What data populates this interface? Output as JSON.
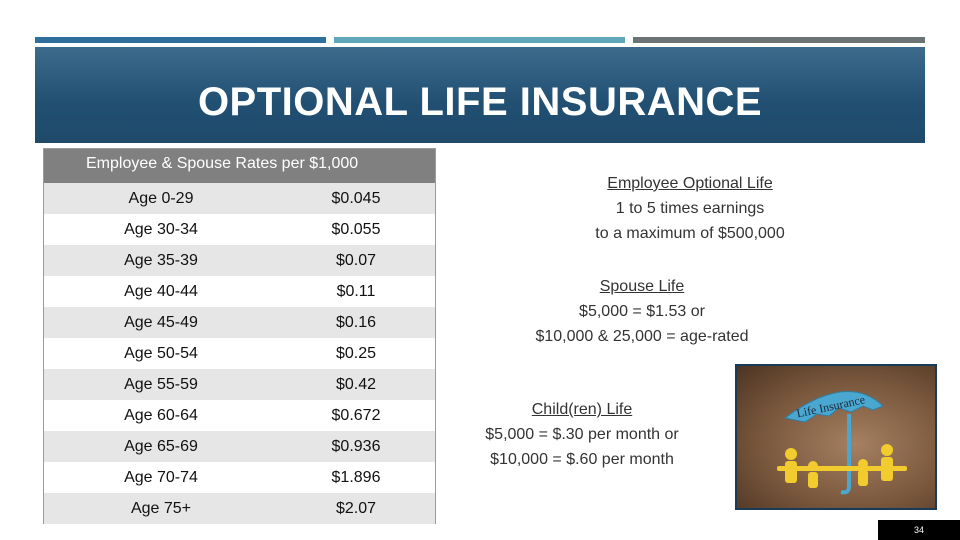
{
  "slide": {
    "title": "OPTIONAL LIFE INSURANCE",
    "page_number": "34"
  },
  "rates_table": {
    "header": "Employee & Spouse Rates per $1,000",
    "rows": [
      {
        "age": "Age 0-29",
        "rate": "$0.045"
      },
      {
        "age": "Age 30-34",
        "rate": "$0.055"
      },
      {
        "age": "Age 35-39",
        "rate": "$0.07"
      },
      {
        "age": "Age 40-44",
        "rate": "$0.11"
      },
      {
        "age": "Age 45-49",
        "rate": "$0.16"
      },
      {
        "age": "Age 50-54",
        "rate": "$0.25"
      },
      {
        "age": "Age 55-59",
        "rate": "$0.42"
      },
      {
        "age": "Age 60-64",
        "rate": "$0.672"
      },
      {
        "age": "Age 65-69",
        "rate": "$0.936"
      },
      {
        "age": "Age 70-74",
        "rate": "$1.896"
      },
      {
        "age": "Age 75+",
        "rate": "$2.07"
      }
    ]
  },
  "employee_optional": {
    "heading": "Employee Optional Life",
    "line1": "1 to 5 times earnings",
    "line2": "to a maximum of $500,000"
  },
  "spouse": {
    "heading": "Spouse Life",
    "line1": "$5,000 = $1.53 or",
    "line2": "$10,000 & 25,000 = age-rated"
  },
  "children": {
    "heading": "Child(ren) Life",
    "line1": "$5,000 = $.30 per month or",
    "line2": "$10,000 = $.60 per month"
  },
  "image": {
    "umbrella_text": "Life Insurance",
    "colors": {
      "umbrella": "#4aa8d0",
      "figures": "#f2cc2e",
      "background": "#8a6548"
    }
  },
  "colors": {
    "banner": "#214f72",
    "table_header": "#808080",
    "row_shade": "#e6e6e6",
    "accent_bars": [
      "#2e6f9b",
      "#5fa8b8",
      "#6b7375"
    ]
  }
}
